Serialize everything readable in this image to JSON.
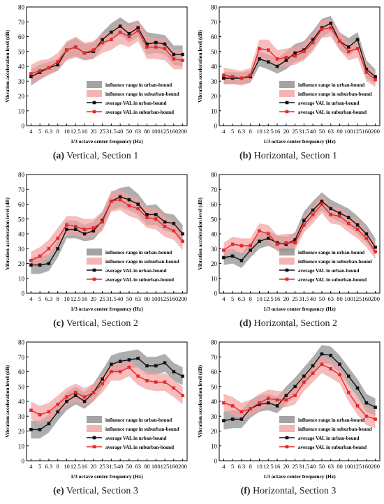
{
  "legend_labels": {
    "urban_range": "influence range in urban-bound",
    "suburban_range": "influence range in suburban-bound",
    "urban_avg": "average VAL in urban-bound",
    "suburban_avg": "average VAL in suburban-bound"
  },
  "colors": {
    "urban_band": "#8c8c8c",
    "suburban_band": "#f4a0a0",
    "urban_line": "#111111",
    "suburban_line": "#e8272a"
  },
  "chart_data": [
    {
      "type": "line",
      "caption_letter": "(a)",
      "caption_text": "Vertical, Section 1",
      "xlabel": "1/3 octave center frequency (Hz)",
      "ylabel": "Vibration acceleration level (dB)",
      "ylim": [
        0,
        80
      ],
      "yticks": [
        0,
        10,
        20,
        30,
        40,
        50,
        60,
        70,
        80
      ],
      "legend_position": "right-lower",
      "x": [
        "4",
        "5",
        "6.3",
        "8",
        "10",
        "12.5",
        "16",
        "20",
        "25",
        "31.5",
        "40",
        "50",
        "63",
        "80",
        "100",
        "125",
        "160",
        "200"
      ],
      "series": [
        {
          "name": "average VAL in urban-bound",
          "values": [
            33,
            36,
            39,
            41,
            51,
            53,
            49,
            50,
            58,
            63,
            67,
            62,
            66,
            55,
            56,
            55,
            48,
            48
          ],
          "range_name": "influence range in urban-bound",
          "range_low": [
            27,
            31,
            35,
            37,
            45,
            47,
            44,
            45,
            53,
            58,
            61,
            56,
            60,
            48,
            49,
            48,
            41,
            40
          ],
          "range_high": [
            38,
            41,
            43,
            45,
            56,
            59,
            55,
            56,
            63,
            69,
            73,
            69,
            71,
            63,
            62,
            61,
            54,
            54
          ]
        },
        {
          "name": "average VAL in suburban-bound",
          "values": [
            35,
            37,
            39,
            43,
            51,
            53,
            49,
            51,
            56,
            58,
            63,
            60,
            64,
            53,
            53,
            52,
            45,
            44
          ],
          "range_name": "influence range in suburban-bound",
          "range_low": [
            28,
            31,
            34,
            37,
            44,
            46,
            44,
            45,
            49,
            51,
            55,
            53,
            57,
            45,
            45,
            44,
            38,
            38
          ],
          "range_high": [
            41,
            44,
            45,
            49,
            57,
            60,
            56,
            57,
            62,
            64,
            70,
            67,
            71,
            60,
            59,
            59,
            51,
            52
          ]
        }
      ]
    },
    {
      "type": "line",
      "caption_letter": "(b)",
      "caption_text": "Horizontal, Section 1",
      "xlabel": "1/3 octave center frequency (Hz)",
      "ylabel": "Vibration acceleration level (dB)",
      "ylim": [
        0,
        80
      ],
      "yticks": [
        0,
        10,
        20,
        30,
        40,
        50,
        60,
        70,
        80
      ],
      "legend_position": "right-lower",
      "x": [
        "4",
        "5",
        "6.3",
        "8",
        "10",
        "12.5",
        "16",
        "20",
        "25",
        "31.5",
        "40",
        "50",
        "63",
        "80",
        "100",
        "125",
        "160",
        "200"
      ],
      "series": [
        {
          "name": "average VAL in urban-bound",
          "values": [
            32,
            32,
            32,
            33,
            45,
            43,
            40,
            44,
            49,
            51,
            58,
            66,
            69,
            57,
            53,
            58,
            38,
            33
          ],
          "range_name": "influence range in urban-bound",
          "range_low": [
            28,
            28,
            28,
            29,
            40,
            38,
            35,
            38,
            43,
            45,
            52,
            60,
            63,
            51,
            47,
            52,
            32,
            28
          ],
          "range_high": [
            36,
            36,
            36,
            37,
            50,
            48,
            45,
            50,
            55,
            57,
            64,
            72,
            74,
            63,
            59,
            63,
            44,
            38
          ]
        },
        {
          "name": "average VAL in suburban-bound",
          "values": [
            34,
            33,
            32,
            34,
            52,
            51,
            45,
            46,
            47,
            50,
            56,
            65,
            66,
            57,
            50,
            52,
            36,
            31
          ],
          "range_name": "influence range in suburban-bound",
          "range_low": [
            29,
            28,
            27,
            29,
            44,
            44,
            39,
            40,
            41,
            44,
            50,
            59,
            60,
            51,
            44,
            46,
            30,
            26
          ],
          "range_high": [
            39,
            38,
            37,
            39,
            58,
            58,
            51,
            52,
            53,
            56,
            62,
            71,
            72,
            63,
            56,
            58,
            42,
            36
          ]
        }
      ]
    },
    {
      "type": "line",
      "caption_letter": "(c)",
      "caption_text": "Vertical, Section 2",
      "xlabel": "1/3 octave center frequency (Hz)",
      "ylabel": "Vibration acceleration level (dB)",
      "ylim": [
        0,
        80
      ],
      "yticks": [
        0,
        10,
        20,
        30,
        40,
        50,
        60,
        70,
        80
      ],
      "legend_position": "right-lower",
      "x": [
        "4",
        "5",
        "6.3",
        "8",
        "10",
        "12.5",
        "16",
        "20",
        "25",
        "31.5",
        "40",
        "50",
        "63",
        "80",
        "100",
        "125",
        "160",
        "200"
      ],
      "series": [
        {
          "name": "average VAL in urban-bound",
          "values": [
            19,
            19,
            20,
            30,
            43,
            43,
            40,
            42,
            49,
            62,
            65,
            63,
            60,
            53,
            53,
            48,
            47,
            40
          ],
          "range_name": "influence range in urban-bound",
          "range_low": [
            13,
            13,
            15,
            24,
            37,
            37,
            35,
            36,
            43,
            56,
            58,
            56,
            53,
            46,
            46,
            42,
            41,
            33
          ],
          "range_high": [
            24,
            25,
            26,
            36,
            49,
            49,
            46,
            48,
            55,
            68,
            71,
            72,
            67,
            59,
            60,
            54,
            53,
            46
          ]
        },
        {
          "name": "average VAL in suburban-bound",
          "values": [
            22,
            25,
            30,
            37,
            46,
            45,
            43,
            44,
            48,
            62,
            63,
            59,
            57,
            51,
            50,
            45,
            42,
            35
          ],
          "range_name": "influence range in suburban-bound",
          "range_low": [
            17,
            20,
            24,
            31,
            39,
            39,
            37,
            38,
            42,
            55,
            56,
            52,
            50,
            44,
            43,
            38,
            36,
            29
          ],
          "range_high": [
            28,
            31,
            36,
            44,
            52,
            52,
            50,
            50,
            55,
            69,
            70,
            66,
            64,
            58,
            57,
            52,
            49,
            42
          ]
        }
      ]
    },
    {
      "type": "line",
      "caption_letter": "(d)",
      "caption_text": "Horizontal, Section 2",
      "xlabel": "1/3 octave center frequency (Hz)",
      "ylabel": "Vibration acceleration level (dB)",
      "ylim": [
        0,
        80
      ],
      "yticks": [
        0,
        10,
        20,
        30,
        40,
        50,
        60,
        70,
        80
      ],
      "legend_position": "right-lower",
      "x": [
        "4",
        "5",
        "6.3",
        "8",
        "10",
        "12.5",
        "16",
        "20",
        "25",
        "31.5",
        "40",
        "50",
        "63",
        "80",
        "100",
        "125",
        "160",
        "200"
      ],
      "series": [
        {
          "name": "average VAL in urban-bound",
          "values": [
            24,
            25,
            22,
            29,
            35,
            37,
            34,
            33,
            36,
            49,
            56,
            62,
            57,
            54,
            51,
            46,
            40,
            31
          ],
          "range_name": "influence range in urban-bound",
          "range_low": [
            19,
            20,
            17,
            24,
            30,
            32,
            29,
            28,
            31,
            44,
            50,
            56,
            51,
            48,
            45,
            40,
            34,
            26
          ],
          "range_high": [
            29,
            30,
            27,
            34,
            40,
            42,
            39,
            38,
            41,
            55,
            62,
            68,
            63,
            60,
            57,
            52,
            46,
            37
          ]
        },
        {
          "name": "average VAL in suburban-bound",
          "values": [
            29,
            33,
            32,
            32,
            42,
            40,
            33,
            34,
            34,
            46,
            53,
            60,
            53,
            52,
            47,
            43,
            37,
            28
          ],
          "range_name": "influence range in suburban-bound",
          "range_low": [
            24,
            28,
            27,
            27,
            36,
            35,
            28,
            29,
            29,
            41,
            47,
            54,
            47,
            46,
            41,
            37,
            31,
            23
          ],
          "range_high": [
            34,
            38,
            37,
            37,
            47,
            46,
            39,
            40,
            40,
            52,
            59,
            66,
            59,
            58,
            53,
            49,
            43,
            34
          ]
        }
      ]
    },
    {
      "type": "line",
      "caption_letter": "(e)",
      "caption_text": "Vertical, Section 3",
      "xlabel": "1/3 octave center frequency (Hz)",
      "ylabel": "Vibration acceleration level (dB)",
      "ylim": [
        0,
        80
      ],
      "yticks": [
        0,
        10,
        20,
        30,
        40,
        50,
        60,
        70,
        80
      ],
      "legend_position": "right-lower",
      "x": [
        "4",
        "5",
        "6.3",
        "8",
        "10",
        "12.5",
        "16",
        "20",
        "25",
        "31.5",
        "40",
        "50",
        "63",
        "80",
        "100",
        "125",
        "160",
        "200"
      ],
      "series": [
        {
          "name": "average VAL in urban-bound",
          "values": [
            21,
            21,
            25,
            33,
            40,
            44,
            40,
            46,
            55,
            65,
            67,
            68,
            69,
            64,
            64,
            66,
            60,
            57
          ],
          "range_name": "influence range in urban-bound",
          "range_low": [
            15,
            15,
            19,
            27,
            34,
            38,
            35,
            40,
            49,
            59,
            61,
            62,
            63,
            58,
            58,
            60,
            54,
            51
          ],
          "range_high": [
            27,
            27,
            31,
            39,
            46,
            50,
            46,
            52,
            61,
            71,
            73,
            74,
            75,
            70,
            70,
            72,
            66,
            63
          ]
        },
        {
          "name": "average VAL in suburban-bound",
          "values": [
            34,
            31,
            33,
            38,
            43,
            46,
            43,
            46,
            52,
            60,
            60,
            63,
            57,
            54,
            53,
            53,
            49,
            44
          ],
          "range_name": "influence range in suburban-bound",
          "range_low": [
            28,
            25,
            27,
            32,
            37,
            40,
            37,
            40,
            46,
            54,
            54,
            57,
            51,
            48,
            47,
            47,
            43,
            38
          ],
          "range_high": [
            40,
            37,
            39,
            44,
            49,
            52,
            49,
            52,
            58,
            66,
            66,
            69,
            63,
            60,
            59,
            59,
            55,
            50
          ]
        }
      ]
    },
    {
      "type": "line",
      "caption_letter": "(f)",
      "caption_text": "Horizontal, Section 3",
      "xlabel": "1/3 octave center frequency (Hz)",
      "ylabel": "Vibration acceleration level (dB)",
      "ylim": [
        0,
        80
      ],
      "yticks": [
        0,
        10,
        20,
        30,
        40,
        50,
        60,
        70,
        80
      ],
      "legend_position": "right-lower",
      "x": [
        "4",
        "5",
        "6.3",
        "8",
        "10",
        "12.5",
        "16",
        "20",
        "25",
        "31.5",
        "40",
        "50",
        "63",
        "80",
        "100",
        "125",
        "160",
        "200"
      ],
      "series": [
        {
          "name": "average VAL in urban-bound",
          "values": [
            27,
            28,
            28,
            35,
            38,
            39,
            37,
            44,
            50,
            57,
            64,
            72,
            71,
            65,
            57,
            49,
            39,
            36
          ],
          "range_name": "influence range in urban-bound",
          "range_low": [
            21,
            22,
            22,
            29,
            33,
            34,
            32,
            38,
            44,
            51,
            58,
            66,
            65,
            59,
            51,
            43,
            33,
            30
          ],
          "range_high": [
            33,
            34,
            34,
            41,
            44,
            45,
            43,
            50,
            56,
            63,
            70,
            78,
            77,
            71,
            63,
            55,
            45,
            42
          ]
        },
        {
          "name": "average VAL in suburban-bound",
          "values": [
            39,
            37,
            33,
            35,
            39,
            42,
            41,
            41,
            44,
            53,
            59,
            65,
            62,
            58,
            46,
            37,
            30,
            28
          ],
          "range_name": "influence range in suburban-bound",
          "range_low": [
            33,
            31,
            28,
            30,
            34,
            37,
            36,
            36,
            38,
            47,
            53,
            59,
            56,
            52,
            40,
            31,
            24,
            22
          ],
          "range_high": [
            45,
            43,
            39,
            41,
            45,
            48,
            47,
            47,
            50,
            59,
            65,
            71,
            68,
            64,
            52,
            43,
            36,
            34
          ]
        }
      ]
    }
  ]
}
